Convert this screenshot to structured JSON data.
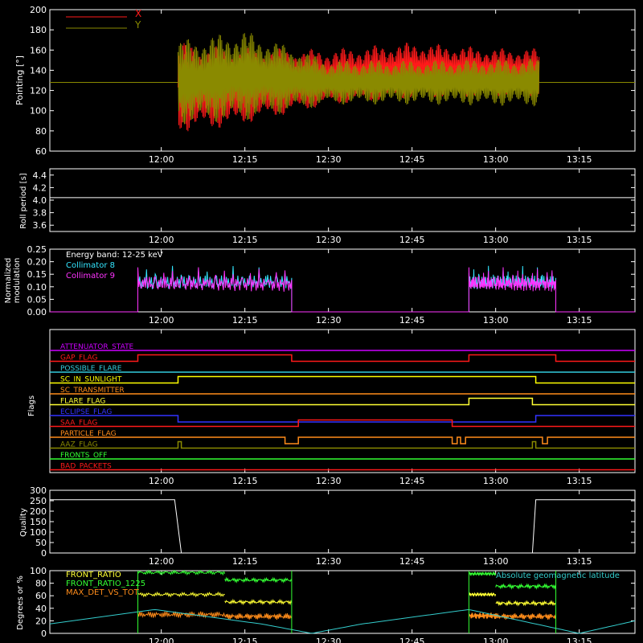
{
  "colors": {
    "background": "#000000",
    "axis": "#ffffff",
    "x": "#ff1a1a",
    "y": "#8a8a00",
    "collimator_8": "#33e6ff",
    "collimator_9": "#ff33ff",
    "front_ratio": "#ffff33",
    "front_ratio_1225": "#33ff33",
    "max_det_vs_tot": "#ff8c1a",
    "geomag": "#33cccc"
  },
  "chart_data": [
    {
      "id": "pointing",
      "type": "line",
      "ylabel": "Pointing [°]",
      "ylim": [
        60,
        200
      ],
      "yticks": [
        "60",
        "80",
        "100",
        "120",
        "140",
        "160",
        "180",
        "200"
      ],
      "xticks": [
        "12:00",
        "12:15",
        "12:30",
        "12:45",
        "13:00",
        "13:15"
      ],
      "series": [
        {
          "name": "X",
          "baseline": 128,
          "active": [
            12.05,
            13.13
          ],
          "mean": [
            [
              12.05,
              123
            ],
            [
              12.2,
              123
            ],
            [
              12.5,
              133
            ],
            [
              12.75,
              140
            ],
            [
              13.0,
              138
            ],
            [
              13.13,
              138
            ]
          ],
          "amp": [
            [
              12.05,
              45
            ],
            [
              12.2,
              40
            ],
            [
              12.5,
              28
            ],
            [
              12.75,
              28
            ],
            [
              13.0,
              24
            ],
            [
              13.13,
              24
            ]
          ]
        },
        {
          "name": "Y",
          "baseline": 128,
          "active": [
            12.05,
            13.13
          ],
          "mean": [
            [
              12.05,
              128
            ],
            [
              12.25,
              135
            ],
            [
              12.5,
              128
            ],
            [
              12.75,
              128
            ],
            [
              13.13,
              128
            ]
          ],
          "amp": [
            [
              12.05,
              42
            ],
            [
              12.25,
              45
            ],
            [
              12.5,
              22
            ],
            [
              12.75,
              22
            ],
            [
              13.13,
              24
            ]
          ]
        }
      ]
    },
    {
      "id": "roll",
      "type": "line",
      "ylabel": "Roll period [s]",
      "ylim": [
        3.5,
        4.5
      ],
      "yticks": [
        "3.6",
        "3.8",
        "4.0",
        "4.2",
        "4.4"
      ],
      "xticks": [
        "12:00",
        "12:15",
        "12:30",
        "12:45",
        "13:00",
        "13:15"
      ],
      "series": [
        {
          "name": "",
          "x": [
            11.667,
            13.417
          ],
          "values": [
            4.04,
            4.04
          ]
        }
      ]
    },
    {
      "id": "modulation",
      "type": "line",
      "ylabel": "Normalized modulation",
      "ylim": [
        0,
        0.25
      ],
      "yticks": [
        "0.00",
        "0.05",
        "0.10",
        "0.15",
        "0.20",
        "0.25"
      ],
      "xticks": [
        "12:00",
        "12:15",
        "12:30",
        "12:45",
        "13:00",
        "13:15"
      ],
      "legend": [
        "Energy band: 12-25 keV",
        "Collimator 8",
        "Collimator 9"
      ],
      "series": [
        {
          "name": "Collimator 8",
          "intervals": [
            [
              11.93,
              12.39
            ],
            [
              12.92,
              13.18
            ]
          ],
          "level": 0.115
        },
        {
          "name": "Collimator 9",
          "intervals": [
            [
              11.93,
              12.39
            ],
            [
              12.92,
              13.18
            ]
          ],
          "level": 0.11
        }
      ]
    },
    {
      "id": "flags",
      "type": "line",
      "ylabel": "Flags",
      "xticks": [
        "12:00",
        "12:15",
        "12:30",
        "12:45",
        "13:00",
        "13:15"
      ],
      "rows": [
        {
          "label": "ATTENUATOR_STATE",
          "color": "#cc00ff",
          "steps": []
        },
        {
          "label": "GAP_FLAG",
          "color": "#ff1a1a",
          "steps": [
            [
              11.93,
              12.39
            ],
            [
              12.92,
              13.18
            ]
          ],
          "polarity": "up"
        },
        {
          "label": "POSSIBLE_FLARE",
          "color": "#33ccdd",
          "steps": []
        },
        {
          "label": "SC_IN_SUNLIGHT",
          "color": "#ffff00",
          "steps": [
            [
              12.05,
              13.12
            ]
          ],
          "polarity": "up"
        },
        {
          "label": "SC_TRANSMITTER",
          "color": "#ff8c1a",
          "steps": []
        },
        {
          "label": "FLARE_FLAG",
          "color": "#ffff33",
          "steps": [
            [
              12.92,
              13.11
            ]
          ],
          "polarity": "up"
        },
        {
          "label": "ECLIPSE_FLAG",
          "color": "#3333ff",
          "steps": [
            [
              12.05,
              13.12
            ]
          ],
          "polarity": "down"
        },
        {
          "label": "SAA_FLAG",
          "color": "#ff1a1a",
          "steps": [
            [
              12.41,
              12.87
            ]
          ],
          "polarity": "up"
        },
        {
          "label": "PARTICLE_FLAG",
          "color": "#ff8c1a",
          "steps": [
            [
              12.37,
              12.41
            ],
            [
              12.87,
              12.885
            ],
            [
              12.895,
              12.91
            ],
            [
              13.14,
              13.155
            ]
          ],
          "polarity": "down"
        },
        {
          "label": "AAZ_FLAG",
          "color": "#8a8a00",
          "steps": [
            [
              12.05,
              12.06
            ],
            [
              13.11,
              13.12
            ]
          ],
          "polarity": "up"
        },
        {
          "label": "FRONTS_OFF",
          "color": "#33ff33",
          "steps": []
        },
        {
          "label": "BAD_PACKETS",
          "color": "#ff1a1a",
          "steps": []
        }
      ]
    },
    {
      "id": "quality",
      "type": "line",
      "ylabel": "Quality",
      "ylim": [
        0,
        300
      ],
      "yticks": [
        "0",
        "50",
        "100",
        "150",
        "200",
        "250",
        "300"
      ],
      "xticks": [
        "12:00",
        "12:15",
        "12:30",
        "12:45",
        "13:00",
        "13:15"
      ],
      "series": [
        {
          "name": "",
          "x": [
            11.667,
            12.04,
            12.06,
            13.11,
            13.12,
            13.417
          ],
          "values": [
            255,
            255,
            0,
            0,
            255,
            255
          ]
        }
      ]
    },
    {
      "id": "ratios",
      "type": "line",
      "ylabel": "Degrees or %",
      "ylim": [
        0,
        100
      ],
      "yticks": [
        "0",
        "20",
        "40",
        "60",
        "80",
        "100"
      ],
      "xticks": [
        "12:00",
        "12:15",
        "12:30",
        "12:45",
        "13:00",
        "13:15"
      ],
      "legend": [
        "FRONT_RATIO",
        "FRONT_RATIO_1225",
        "MAX_DET_VS_TOT",
        "Absolute geomagnetic latitude"
      ],
      "series": [
        {
          "name": "FRONT_RATIO",
          "segments": [
            [
              11.93,
              12.19,
              62
            ],
            [
              12.19,
              12.39,
              50
            ],
            [
              12.92,
              13.0,
              62
            ],
            [
              13.0,
              13.18,
              48
            ]
          ]
        },
        {
          "name": "FRONT_RATIO_1225",
          "segments": [
            [
              11.93,
              12.19,
              97
            ],
            [
              12.19,
              12.39,
              85
            ],
            [
              12.92,
              13.0,
              95
            ],
            [
              13.0,
              13.18,
              75
            ]
          ]
        },
        {
          "name": "MAX_DET_VS_TOT",
          "segments": [
            [
              11.93,
              12.19,
              30
            ],
            [
              12.19,
              12.39,
              27
            ],
            [
              12.92,
              13.0,
              28
            ],
            [
              13.0,
              13.18,
              27
            ]
          ]
        },
        {
          "name": "Absolute geomagnetic latitude",
          "x": [
            11.667,
            11.98,
            12.3,
            12.45,
            12.6,
            12.92,
            13.25,
            13.417
          ],
          "values": [
            15,
            38,
            15,
            0,
            15,
            38,
            0,
            20
          ]
        }
      ]
    }
  ]
}
